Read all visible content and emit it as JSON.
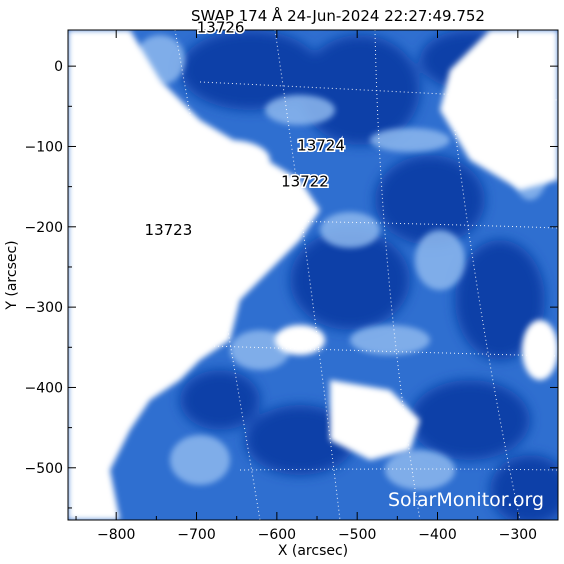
{
  "title": "SWAP 174 Å 24-Jun-2024 22:27:49.752",
  "x_axis": {
    "label": "X (arcsec)",
    "range": [
      -860,
      -250
    ],
    "ticks": [
      -800,
      -700,
      -600,
      -500,
      -400,
      -300
    ],
    "tick_labels": [
      "−800",
      "−700",
      "−600",
      "−500",
      "−400",
      "−300"
    ]
  },
  "y_axis": {
    "label": "Y (arcsec)",
    "range": [
      -565,
      45
    ],
    "ticks": [
      0,
      -100,
      -200,
      -300,
      -400,
      -500
    ],
    "tick_labels": [
      "0",
      "−100",
      "−200",
      "−300",
      "−400",
      "−500"
    ]
  },
  "active_regions": [
    {
      "label": "13726",
      "x": -670,
      "y": 42
    },
    {
      "label": "13724",
      "x": -545,
      "y": -105
    },
    {
      "label": "13722",
      "x": -565,
      "y": -150
    },
    {
      "label": "13723",
      "x": -735,
      "y": -210
    }
  ],
  "watermark": "SolarMonitor.org",
  "colors": {
    "deep": "#0a3fa8",
    "mid": "#2f6fd0",
    "light": "#8db8ee",
    "pale": "#d9e8fb",
    "saturated": "#ffffff",
    "grid": "#ffffff"
  }
}
